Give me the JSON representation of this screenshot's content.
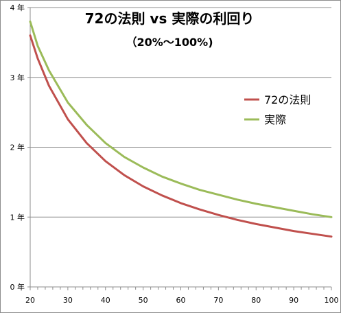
{
  "chart_data": {
    "type": "line",
    "title": "72の法則 vs 実際の利回り",
    "subtitle": "（20%〜100%)",
    "xlabel": "",
    "ylabel": "",
    "xlim": [
      20,
      100
    ],
    "ylim": [
      0,
      4
    ],
    "x_ticks": [
      20,
      30,
      40,
      50,
      60,
      70,
      80,
      90,
      100
    ],
    "y_ticks": [
      0,
      1,
      2,
      3,
      4
    ],
    "y_tick_labels": [
      "0 年",
      "1 年",
      "2 年",
      "3 年",
      "4 年"
    ],
    "grid": "horizontal",
    "legend_position": "right",
    "x": [
      20,
      22,
      25,
      30,
      35,
      40,
      45,
      50,
      55,
      60,
      65,
      70,
      75,
      80,
      85,
      90,
      95,
      100
    ],
    "series": [
      {
        "name": "72の法則",
        "color": "#c0504d",
        "values": [
          3.6,
          3.27,
          2.88,
          2.4,
          2.06,
          1.8,
          1.6,
          1.44,
          1.31,
          1.2,
          1.11,
          1.03,
          0.96,
          0.9,
          0.85,
          0.8,
          0.76,
          0.72
        ]
      },
      {
        "name": "実際",
        "color": "#9bbb59",
        "values": [
          3.8,
          3.45,
          3.1,
          2.64,
          2.32,
          2.06,
          1.86,
          1.71,
          1.58,
          1.48,
          1.39,
          1.32,
          1.25,
          1.19,
          1.14,
          1.09,
          1.04,
          1.0
        ]
      }
    ]
  }
}
